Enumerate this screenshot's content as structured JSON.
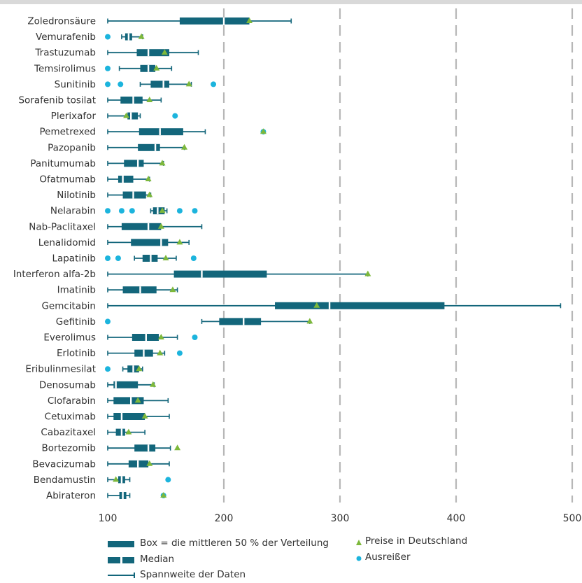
{
  "colors": {
    "box": "#13667b",
    "whisker": "#13667b",
    "median_gap": "#ffffff",
    "price": "#7db83b",
    "outlier": "#1cb4dd",
    "grid": "#b7b7b7",
    "topbar": "#d9d9d9",
    "text": "#333333"
  },
  "legend": {
    "box": "Box = die mittleren 50 % der Verteilung",
    "median": "Median",
    "range": "Spannweite der Daten",
    "price": "Preise in Deutschland",
    "outlier": "Ausreißer"
  },
  "chart_data": {
    "type": "boxplot-horizontal",
    "xlim": [
      100,
      500
    ],
    "xticks": [
      "100",
      "200",
      "300",
      "400",
      "500"
    ],
    "grid": "vertical dashed",
    "categories": [
      "Zoledronsäure",
      "Vemurafenib",
      "Trastuzumab",
      "Temsirolimus",
      "Sunitinib",
      "Sorafenib tosilat",
      "Plerixafor",
      "Pemetrexed",
      "Pazopanib",
      "Panitumumab",
      "Ofatmumab",
      "Nilotinib",
      "Nelarabin",
      "Nab-Paclitaxel",
      "Lenalidomid",
      "Lapatinib",
      "Interferon alfa-2b",
      "Imatinib",
      "Gemcitabin",
      "Gefitinib",
      "Everolimus",
      "Erlotinib",
      "Eribulinmesilat",
      "Denosumab",
      "Clofarabin",
      "Cetuximab",
      "Cabazitaxel",
      "Bortezomib",
      "Bevacizumab",
      "Bendamustin",
      "Abirateron"
    ],
    "series": [
      {
        "label": "Zoledronsäure",
        "min": 100,
        "q1": 162,
        "median": 200,
        "q3": 222,
        "max": 258,
        "price": 222,
        "outliers": []
      },
      {
        "label": "Vemurafenib",
        "min": 112,
        "q1": 115,
        "median": 118,
        "q3": 121,
        "max": 130,
        "price": 129,
        "outliers": [
          100
        ]
      },
      {
        "label": "Trastuzumab",
        "min": 100,
        "q1": 125,
        "median": 135,
        "q3": 153,
        "max": 178,
        "price": 149,
        "outliers": []
      },
      {
        "label": "Temsirolimus",
        "min": 110,
        "q1": 128,
        "median": 135,
        "q3": 141,
        "max": 155,
        "price": 142,
        "outliers": [
          100
        ]
      },
      {
        "label": "Sunitinib",
        "min": 128,
        "q1": 137,
        "median": 148,
        "q3": 153,
        "max": 172,
        "price": 170,
        "outliers": [
          100,
          111,
          191
        ]
      },
      {
        "label": "Sorafenib tosilat",
        "min": 100,
        "q1": 111,
        "median": 122,
        "q3": 130,
        "max": 146,
        "price": 136,
        "outliers": []
      },
      {
        "label": "Plerixafor",
        "min": 100,
        "q1": 117,
        "median": 120,
        "q3": 126,
        "max": 128,
        "price": 116,
        "outliers": [
          158
        ]
      },
      {
        "label": "Pemetrexed",
        "min": 100,
        "q1": 127,
        "median": 145,
        "q3": 165,
        "max": 184,
        "price": 234,
        "outliers": [
          234
        ]
      },
      {
        "label": "Pazopanib",
        "min": 100,
        "q1": 126,
        "median": 141,
        "q3": 145,
        "max": 166,
        "price": 166,
        "outliers": []
      },
      {
        "label": "Panitumumab",
        "min": 100,
        "q1": 114,
        "median": 126,
        "q3": 131,
        "max": 148,
        "price": 147,
        "outliers": []
      },
      {
        "label": "Ofatmumab",
        "min": 100,
        "q1": 109,
        "median": 113,
        "q3": 122,
        "max": 136,
        "price": 135,
        "outliers": []
      },
      {
        "label": "Nilotinib",
        "min": 100,
        "q1": 113,
        "median": 122,
        "q3": 133,
        "max": 137,
        "price": 136,
        "outliers": []
      },
      {
        "label": "Nelarabin",
        "min": 137,
        "q1": 139,
        "median": 143,
        "q3": 149,
        "max": 151,
        "price": 147,
        "outliers": [
          100,
          112,
          121,
          162,
          175
        ]
      },
      {
        "label": "Nab-Paclitaxel",
        "min": 100,
        "q1": 112,
        "median": 135,
        "q3": 146,
        "max": 181,
        "price": 146,
        "outliers": []
      },
      {
        "label": "Lenalidomid",
        "min": 100,
        "q1": 120,
        "median": 146,
        "q3": 152,
        "max": 170,
        "price": 162,
        "outliers": []
      },
      {
        "label": "Lapatinib",
        "min": 123,
        "q1": 130,
        "median": 137,
        "q3": 143,
        "max": 159,
        "price": 150,
        "outliers": [
          100,
          109,
          174
        ]
      },
      {
        "label": "Interferon alfa-2b",
        "min": 100,
        "q1": 157,
        "median": 181,
        "q3": 237,
        "max": 324,
        "price": 324,
        "outliers": []
      },
      {
        "label": "Imatinib",
        "min": 100,
        "q1": 113,
        "median": 128,
        "q3": 142,
        "max": 160,
        "price": 156,
        "outliers": []
      },
      {
        "label": "Gemcitabin",
        "min": 100,
        "q1": 244,
        "median": 291,
        "q3": 390,
        "max": 490,
        "price": 280,
        "outliers": []
      },
      {
        "label": "Gefitinib",
        "min": 181,
        "q1": 196,
        "median": 217,
        "q3": 232,
        "max": 274,
        "price": 274,
        "outliers": [
          100
        ]
      },
      {
        "label": "Everolimus",
        "min": 100,
        "q1": 121,
        "median": 133,
        "q3": 144,
        "max": 160,
        "price": 146,
        "outliers": [
          175
        ]
      },
      {
        "label": "Erlotinib",
        "min": 100,
        "q1": 123,
        "median": 131,
        "q3": 139,
        "max": 149,
        "price": 145,
        "outliers": [
          162
        ]
      },
      {
        "label": "Eribulinmesilat",
        "min": 113,
        "q1": 117,
        "median": 122,
        "q3": 127,
        "max": 130,
        "price": 127,
        "outliers": [
          100
        ]
      },
      {
        "label": "Denosumab",
        "min": 100,
        "q1": 105,
        "median": 107,
        "q3": 126,
        "max": 140,
        "price": 139,
        "outliers": []
      },
      {
        "label": "Clofarabin",
        "min": 100,
        "q1": 105,
        "median": 120,
        "q3": 131,
        "max": 152,
        "price": 126,
        "outliers": []
      },
      {
        "label": "Cetuximab",
        "min": 100,
        "q1": 105,
        "median": 112,
        "q3": 132,
        "max": 153,
        "price": 132,
        "outliers": []
      },
      {
        "label": "Cabazitaxel",
        "min": 100,
        "q1": 107,
        "median": 112,
        "q3": 115,
        "max": 132,
        "price": 118,
        "outliers": []
      },
      {
        "label": "Bortezomib",
        "min": 100,
        "q1": 123,
        "median": 135,
        "q3": 141,
        "max": 154,
        "price": 160,
        "outliers": []
      },
      {
        "label": "Bevacizumab",
        "min": 100,
        "q1": 118,
        "median": 126,
        "q3": 135,
        "max": 153,
        "price": 136,
        "outliers": []
      },
      {
        "label": "Bendamustin",
        "min": 100,
        "q1": 109,
        "median": 112,
        "q3": 115,
        "max": 119,
        "price": 107,
        "outliers": [
          152
        ]
      },
      {
        "label": "Abirateron",
        "min": 100,
        "q1": 110,
        "median": 113,
        "q3": 116,
        "max": 119,
        "price": 148,
        "outliers": [
          148
        ]
      }
    ]
  }
}
